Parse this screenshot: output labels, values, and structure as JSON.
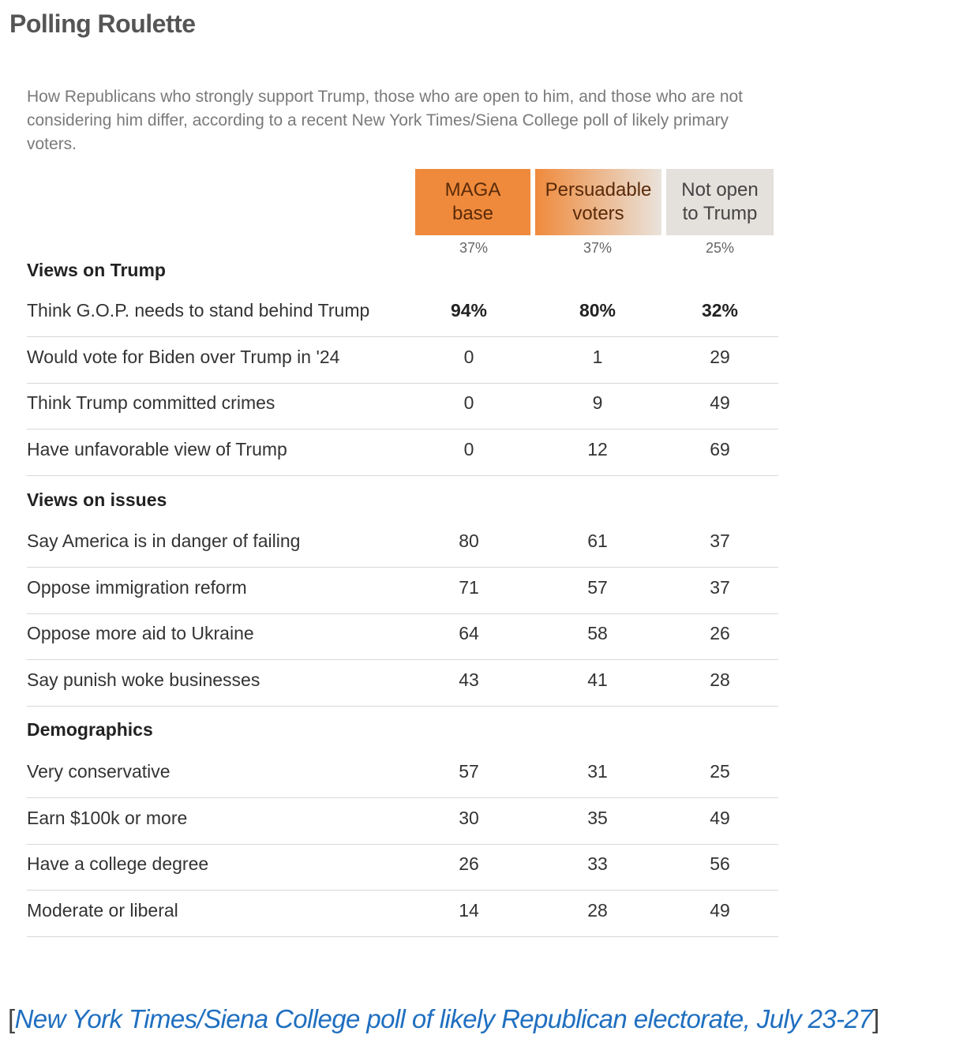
{
  "page": {
    "heading": "Polling Roulette",
    "subtitle": "How Republicans who strongly support Trump, those who are open to him, and those who are not considering him differ, according to a recent New York Times/Siena College poll of likely primary voters.",
    "source_open": "[",
    "source_link": "New York Times/Siena College poll of likely Republican electorate, July 23-27",
    "source_close": "]"
  },
  "colors": {
    "maga": "#ef8a3c",
    "persuadable_from": "#ef8a3c",
    "persuadable_to": "#e9e3dc",
    "not_open": "#e4e0dc",
    "link": "#1f6fc0"
  },
  "chart_data": {
    "type": "table",
    "columns": [
      {
        "label": "MAGA\nbase",
        "share": "37%"
      },
      {
        "label": "Persuadable\nvoters",
        "share": "37%"
      },
      {
        "label": "Not open\nto Trump",
        "share": "25%"
      }
    ],
    "sections": [
      {
        "title": "Views on Trump",
        "rows": [
          {
            "label": "Think G.O.P. needs to stand behind Trump",
            "values": [
              "94%",
              "80%",
              "32%"
            ],
            "bold": true
          },
          {
            "label": "Would vote for Biden over Trump in '24",
            "values": [
              "0",
              "1",
              "29"
            ]
          },
          {
            "label": "Think Trump committed crimes",
            "values": [
              "0",
              "9",
              "49"
            ]
          },
          {
            "label": "Have unfavorable view of Trump",
            "values": [
              "0",
              "12",
              "69"
            ]
          }
        ]
      },
      {
        "title": "Views on issues",
        "rows": [
          {
            "label": "Say America is in danger of failing",
            "values": [
              "80",
              "61",
              "37"
            ]
          },
          {
            "label": "Oppose immigration reform",
            "values": [
              "71",
              "57",
              "37"
            ]
          },
          {
            "label": "Oppose more aid to Ukraine",
            "values": [
              "64",
              "58",
              "26"
            ]
          },
          {
            "label": "Say punish woke businesses",
            "values": [
              "43",
              "41",
              "28"
            ]
          }
        ]
      },
      {
        "title": "Demographics",
        "rows": [
          {
            "label": "Very conservative",
            "values": [
              "57",
              "31",
              "25"
            ]
          },
          {
            "label": "Earn $100k or more",
            "values": [
              "30",
              "35",
              "49"
            ]
          },
          {
            "label": "Have a college degree",
            "values": [
              "26",
              "33",
              "56"
            ]
          },
          {
            "label": "Moderate or liberal",
            "values": [
              "14",
              "28",
              "49"
            ]
          }
        ]
      }
    ]
  }
}
